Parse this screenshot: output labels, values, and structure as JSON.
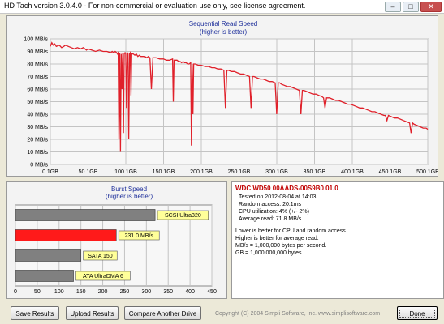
{
  "window": {
    "title": "HD Tach version 3.0.4.0  - For non-commercial or evaluation use only, see license agreement.",
    "minimize": "–",
    "maximize": "□",
    "close": "✕"
  },
  "read_chart": {
    "title": "Sequential Read Speed",
    "subtitle": "(higher is better)"
  },
  "burst_chart": {
    "title": "Burst Speed",
    "subtitle": "(higher is better)"
  },
  "info": {
    "drive": "WDC WD50 00AADS-00S9B0 01.0",
    "tested_on": "Tested on 2012-08-04 at 14:03",
    "random_access": "Random access: 20.1ms",
    "cpu": "CPU utilization: 4% (+/- 2%)",
    "average_read": "Average read: 71.8 MB/s",
    "note1": "Lower is better for CPU and random access.",
    "note2": "Higher is better for average read.",
    "note3": "MB/s = 1,000,000 bytes per second.",
    "note4": "GB = 1,000,000,000 bytes."
  },
  "buttons": {
    "save": "Save Results",
    "upload": "Upload Results",
    "compare": "Compare Another Drive",
    "done": "Done"
  },
  "copyright": "Copyright (C) 2004 Simpli Software, Inc. www.simplisoftware.com",
  "chart_data": [
    {
      "type": "line",
      "title": "Sequential Read Speed",
      "subtitle": "(higher is better)",
      "xlabel": "",
      "ylabel": "",
      "x_ticks": [
        "0.1GB",
        "50.1GB",
        "100.1GB",
        "150.1GB",
        "200.1GB",
        "250.1GB",
        "300.1GB",
        "350.1GB",
        "400.1GB",
        "450.1GB",
        "500.1GB"
      ],
      "y_ticks": [
        "0 MB/s",
        "10 MB/s",
        "20 MB/s",
        "30 MB/s",
        "40 MB/s",
        "50 MB/s",
        "60 MB/s",
        "70 MB/s",
        "80 MB/s",
        "90 MB/s",
        "100 MB/s"
      ],
      "xlim": [
        0.1,
        500.1
      ],
      "ylim": [
        0,
        100
      ],
      "grid": true,
      "color": "#e0202a",
      "series": [
        {
          "x": [
            0.1,
            2,
            4,
            6,
            8,
            12,
            15,
            18,
            20,
            24,
            28,
            32,
            36,
            40,
            44,
            48,
            50,
            55,
            60,
            65,
            70,
            75,
            80,
            82,
            84,
            86,
            88,
            89,
            90,
            91,
            92,
            93,
            94,
            95,
            96,
            97,
            98,
            99,
            100,
            101,
            102,
            103,
            104,
            105,
            106,
            107,
            108,
            110,
            112,
            114,
            116,
            118,
            120,
            125,
            128,
            130,
            132,
            134,
            136,
            140,
            145,
            150,
            154,
            158,
            162,
            163,
            164,
            168,
            170,
            172,
            174,
            176,
            178,
            180,
            182,
            184,
            186,
            187,
            188,
            189,
            190,
            192,
            196,
            200,
            205,
            210,
            214,
            218,
            222,
            226,
            230,
            232,
            234,
            236,
            240,
            244,
            248,
            252,
            256,
            260,
            264,
            266,
            268,
            270,
            274,
            278,
            282,
            286,
            290,
            294,
            298,
            300,
            302,
            304,
            306,
            310,
            314,
            318,
            322,
            326,
            330,
            332,
            334,
            336,
            340,
            344,
            348,
            352,
            356,
            360,
            362,
            364,
            366,
            370,
            374,
            378,
            382,
            386,
            390,
            394,
            398,
            402,
            406,
            410,
            414,
            418,
            422,
            426,
            430,
            434,
            438,
            442,
            444,
            446,
            448,
            452,
            456,
            460,
            464,
            468,
            472,
            476,
            478,
            480,
            482,
            486,
            490,
            494,
            498,
            500.1
          ],
          "y": [
            94,
            97,
            95,
            96,
            94,
            95,
            93,
            94,
            95,
            94,
            93,
            92,
            93,
            92,
            93,
            91,
            92,
            91,
            90,
            91,
            90,
            90,
            89,
            90,
            89,
            90,
            89,
            88,
            89,
            20,
            89,
            10,
            88,
            60,
            89,
            25,
            88,
            89,
            88,
            45,
            89,
            88,
            20,
            88,
            89,
            55,
            88,
            88,
            87,
            88,
            86,
            87,
            86,
            86,
            85,
            86,
            85,
            60,
            85,
            85,
            84,
            84,
            83,
            83,
            84,
            50,
            83,
            83,
            82,
            82,
            81,
            82,
            81,
            81,
            80,
            80,
            81,
            15,
            80,
            40,
            80,
            80,
            79,
            79,
            78,
            78,
            77,
            77,
            76,
            76,
            75,
            45,
            75,
            75,
            74,
            74,
            73,
            72,
            72,
            71,
            70,
            45,
            70,
            70,
            69,
            68,
            68,
            67,
            66,
            66,
            65,
            40,
            65,
            65,
            64,
            63,
            62,
            62,
            61,
            60,
            59,
            40,
            59,
            59,
            58,
            57,
            56,
            56,
            55,
            54,
            53,
            45,
            53,
            53,
            52,
            51,
            51,
            50,
            49,
            48,
            48,
            47,
            46,
            45,
            45,
            44,
            43,
            42,
            42,
            41,
            40,
            39,
            39,
            35,
            39,
            38,
            37,
            37,
            36,
            35,
            34,
            33,
            25,
            33,
            32,
            31,
            30,
            29,
            29,
            28
          ]
        }
      ]
    },
    {
      "type": "bar",
      "orientation": "horizontal",
      "title": "Burst Speed",
      "subtitle": "(higher is better)",
      "xlim": [
        0,
        450
      ],
      "x_ticks": [
        "0",
        "50",
        "100",
        "150",
        "200",
        "250",
        "300",
        "350",
        "400",
        "450"
      ],
      "categories": [
        "SCSI Ultra320",
        "231.0 MB/s",
        "SATA 150",
        "ATA UltraDMA 6"
      ],
      "values": [
        320,
        231,
        150,
        133
      ],
      "colors": [
        "#808080",
        "#ff1a1a",
        "#808080",
        "#808080"
      ]
    }
  ]
}
